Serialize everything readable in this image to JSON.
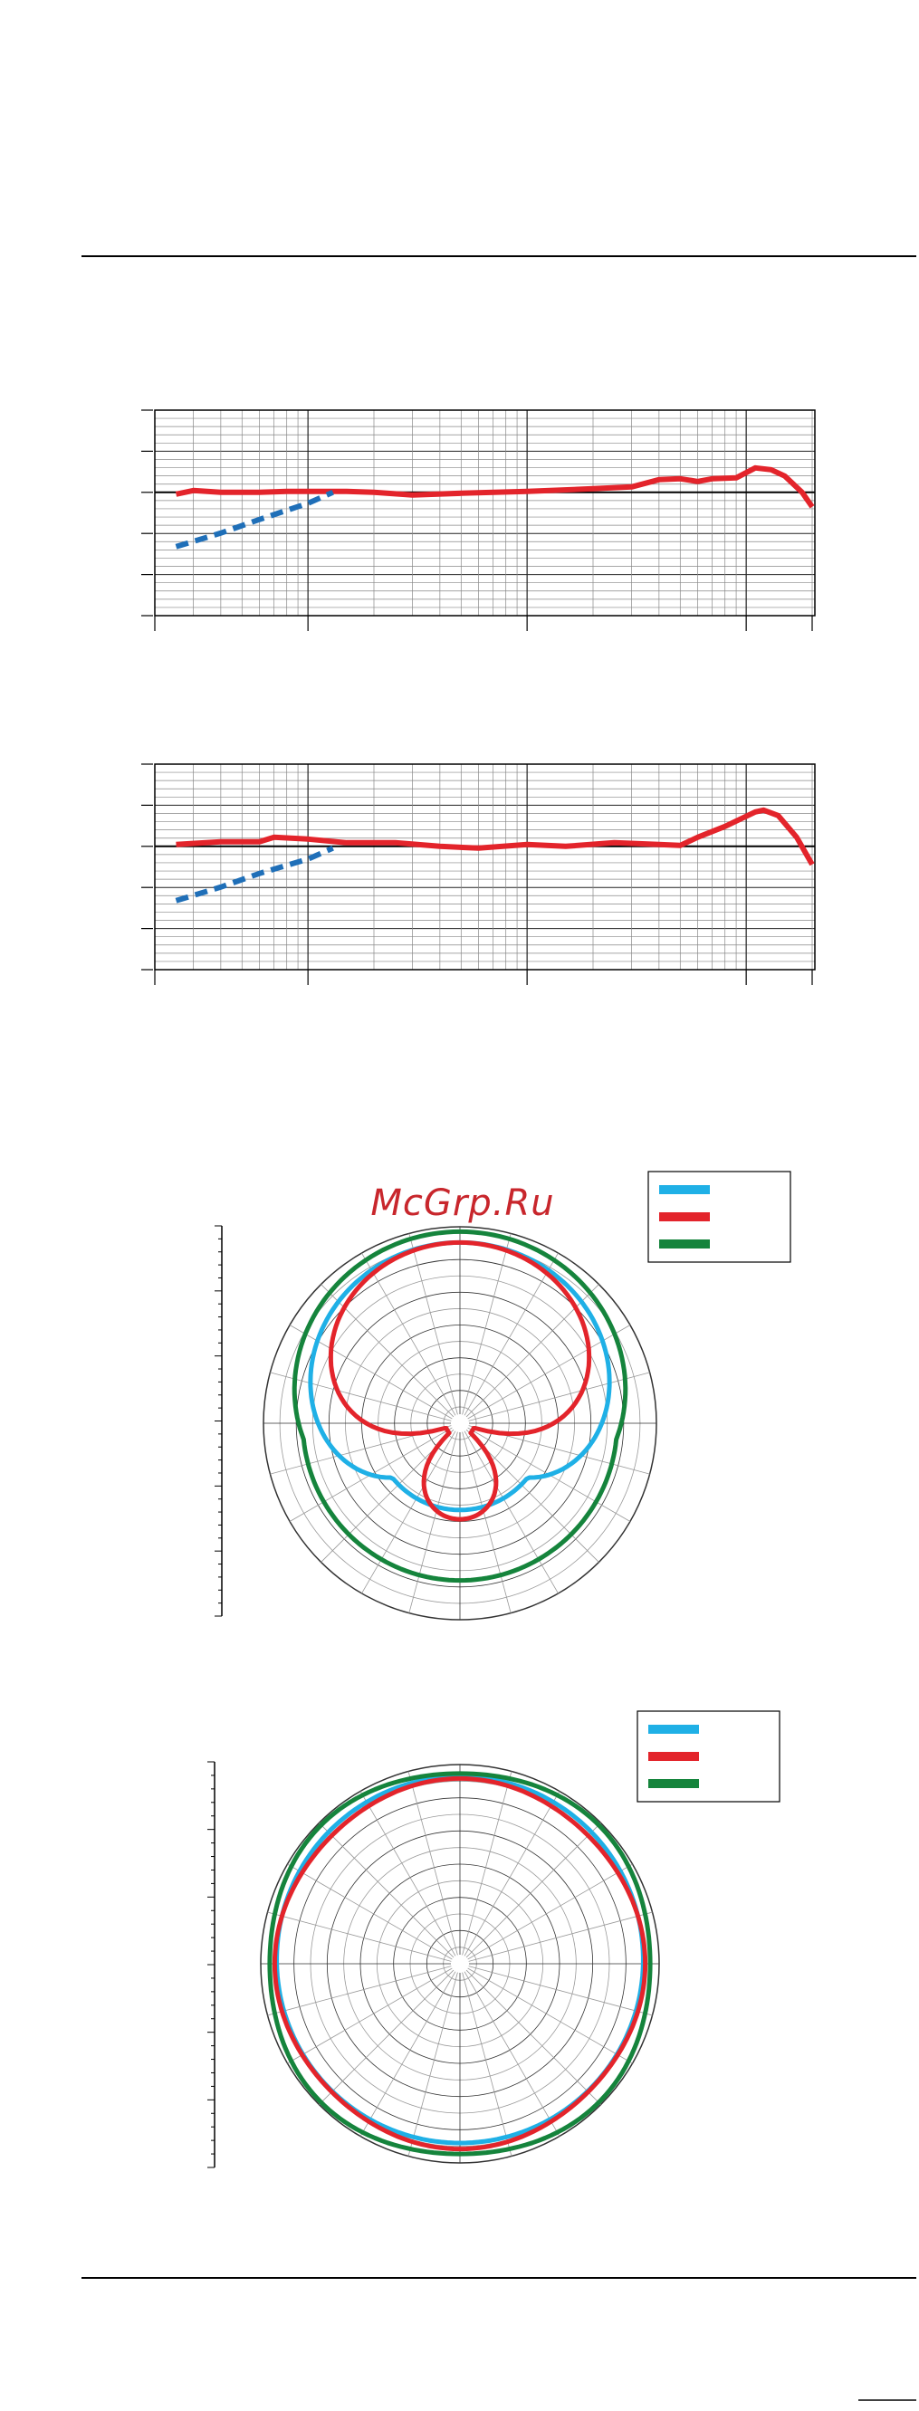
{
  "watermark": "McGrp.Ru"
}
